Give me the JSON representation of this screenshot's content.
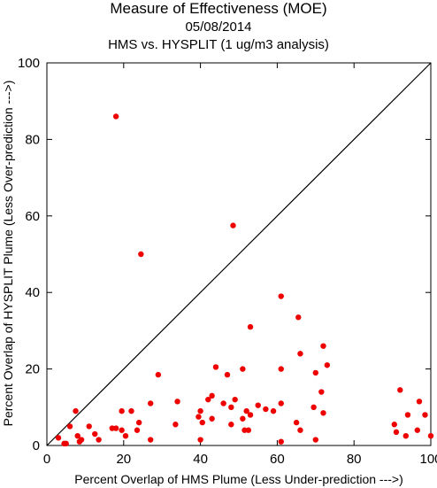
{
  "chart_data": {
    "type": "scatter",
    "title": "Measure of Effectiveness (MOE)",
    "subtitle": "05/08/2014",
    "subtitle2": "HMS vs. HYSPLIT  (1 ug/m3 analysis)",
    "xlabel": "Percent Overlap of HMS Plume (Less Under-prediction --->)",
    "ylabel": "Percent Overlap of HYSPLIT Plume (Less Over-prediction --->)",
    "xlim": [
      0,
      100
    ],
    "ylim": [
      0,
      100
    ],
    "xticks": [
      "0",
      "20",
      "40",
      "60",
      "80",
      "100"
    ],
    "yticks": [
      "0",
      "20",
      "40",
      "60",
      "80",
      "100"
    ],
    "reference_line": "y = x",
    "point_color": "#ee0000",
    "grid": false,
    "points": [
      [
        18,
        86
      ],
      [
        48.5,
        57.5
      ],
      [
        24.5,
        50
      ],
      [
        61,
        39
      ],
      [
        65.5,
        33.5
      ],
      [
        53,
        31
      ],
      [
        72,
        26
      ],
      [
        66,
        24
      ],
      [
        44,
        20.5
      ],
      [
        73,
        21
      ],
      [
        51,
        20
      ],
      [
        61,
        20
      ],
      [
        47,
        18.5
      ],
      [
        29,
        18.5
      ],
      [
        70,
        19
      ],
      [
        71.5,
        14
      ],
      [
        43,
        13
      ],
      [
        92,
        14.5
      ],
      [
        97,
        11.5
      ],
      [
        42,
        12
      ],
      [
        46,
        11
      ],
      [
        34,
        11.5
      ],
      [
        27,
        11
      ],
      [
        49,
        12
      ],
      [
        61,
        11
      ],
      [
        65,
        6
      ],
      [
        69.5,
        10
      ],
      [
        72,
        8.5
      ],
      [
        57,
        9.5
      ],
      [
        59,
        9
      ],
      [
        48,
        10
      ],
      [
        55,
        10.5
      ],
      [
        52,
        9
      ],
      [
        53,
        8
      ],
      [
        51,
        7
      ],
      [
        40,
        9
      ],
      [
        39.5,
        7.5
      ],
      [
        40.5,
        6
      ],
      [
        43,
        7
      ],
      [
        22,
        9
      ],
      [
        19.5,
        9
      ],
      [
        7.5,
        9
      ],
      [
        24,
        6
      ],
      [
        11,
        5
      ],
      [
        6,
        5
      ],
      [
        33.5,
        5.5
      ],
      [
        23.5,
        4
      ],
      [
        18,
        4.5
      ],
      [
        19.5,
        4
      ],
      [
        17,
        4.5
      ],
      [
        20.5,
        2.5
      ],
      [
        8,
        2.5
      ],
      [
        9,
        1.5
      ],
      [
        3,
        2
      ],
      [
        12.5,
        3
      ],
      [
        8.5,
        1
      ],
      [
        4.5,
        0.5
      ],
      [
        5,
        0.5
      ],
      [
        13.5,
        1.5
      ],
      [
        27,
        1.5
      ],
      [
        40,
        1.5
      ],
      [
        51.5,
        4
      ],
      [
        52.5,
        4
      ],
      [
        48,
        5.5
      ],
      [
        61,
        1
      ],
      [
        66,
        4
      ],
      [
        70,
        1.5
      ],
      [
        90.5,
        5.5
      ],
      [
        91,
        3.5
      ],
      [
        93.5,
        2.5
      ],
      [
        94,
        8
      ],
      [
        96.5,
        4
      ],
      [
        98.5,
        8
      ],
      [
        100,
        2.5
      ]
    ]
  }
}
